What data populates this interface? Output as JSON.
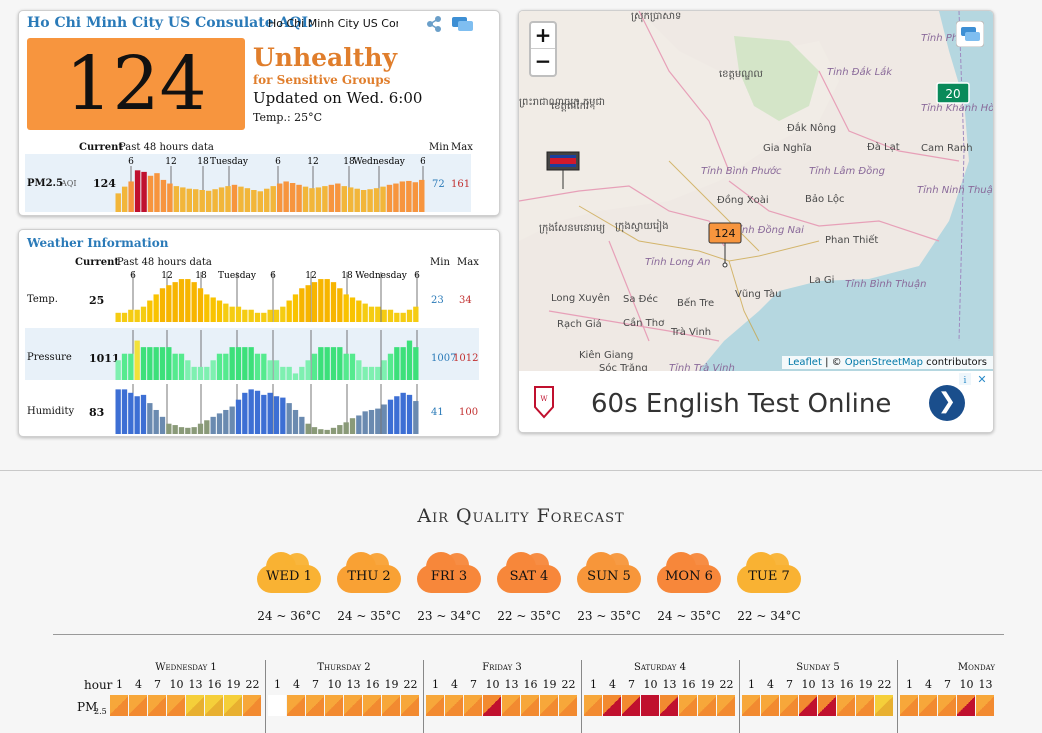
{
  "aqi_panel": {
    "title": "Ho Chi Minh City US Consulate AQI:",
    "title_value": "Ho Chi Minh City US Cons",
    "aqi_value": "124",
    "status": "Unhealthy",
    "status_sub": "for Sensitive Groups",
    "updated": "Updated on Wed. 6:00",
    "temp": "Temp.: 25°C",
    "col_current": "Current",
    "col_past": "Past 48 hours data",
    "col_min": "Min",
    "col_max": "Max",
    "axis_labels": [
      "6",
      "12",
      "18",
      "Tuesday",
      "6",
      "12",
      "18",
      "Wednesday",
      "6"
    ],
    "pm25_label": "PM2.5",
    "pm25_sub": "AQI",
    "pm25_current": "124",
    "pm25_min": "72",
    "pm25_max": "161",
    "pm25_series": [
      72,
      98,
      118,
      161,
      155,
      140,
      150,
      124,
      110,
      100,
      95,
      90,
      88,
      85,
      82,
      88,
      95,
      100,
      105,
      98,
      92,
      85,
      80,
      90,
      100,
      110,
      118,
      112,
      105,
      98,
      92,
      95,
      100,
      105,
      110,
      100,
      95,
      90,
      85,
      88,
      92,
      98,
      105,
      110,
      118,
      120,
      115,
      124
    ],
    "colors": {
      "good": "#59b443",
      "moderate": "#f2c200",
      "sensitive": "#f7953e",
      "unhealthy": "#c0102e"
    }
  },
  "weather_panel": {
    "title": "Weather Information",
    "col_current": "Current",
    "col_past": "Past 48 hours data",
    "col_min": "Min",
    "col_max": "Max",
    "axis_labels": [
      "6",
      "12",
      "18",
      "Tuesday",
      "6",
      "12",
      "18",
      "Wednesday",
      "6"
    ],
    "rows": [
      {
        "label": "Temp.",
        "current": "25",
        "min": "23",
        "max": "34",
        "series": [
          23,
          23,
          24,
          24,
          25,
          27,
          29,
          31,
          32,
          33,
          34,
          34,
          33,
          31,
          29,
          28,
          27,
          26,
          25,
          25,
          24,
          24,
          23,
          23,
          24,
          24,
          25,
          27,
          29,
          31,
          32,
          33,
          34,
          34,
          33,
          31,
          29,
          28,
          27,
          26,
          25,
          25,
          24,
          24,
          23,
          23,
          24,
          25
        ]
      },
      {
        "label": "Pressure",
        "current": "1011",
        "min": "1007",
        "max": "1012",
        "series": [
          1009,
          1010,
          1010,
          1012,
          1011,
          1011,
          1011,
          1011,
          1011,
          1010,
          1010,
          1009,
          1008,
          1008,
          1008,
          1009,
          1010,
          1010,
          1011,
          1011,
          1011,
          1011,
          1010,
          1010,
          1009,
          1009,
          1008,
          1008,
          1007,
          1008,
          1009,
          1010,
          1011,
          1011,
          1011,
          1011,
          1010,
          1010,
          1009,
          1008,
          1008,
          1008,
          1009,
          1010,
          1011,
          1011,
          1012,
          1011
        ]
      },
      {
        "label": "Humidity",
        "current": "83",
        "min": "41",
        "max": "100",
        "series": [
          100,
          100,
          95,
          90,
          92,
          80,
          70,
          60,
          50,
          48,
          45,
          44,
          45,
          50,
          55,
          60,
          65,
          70,
          75,
          85,
          95,
          100,
          98,
          92,
          95,
          90,
          88,
          80,
          70,
          60,
          50,
          45,
          42,
          41,
          44,
          48,
          52,
          58,
          62,
          68,
          70,
          72,
          78,
          85,
          90,
          95,
          92,
          83
        ]
      }
    ]
  },
  "map": {
    "zoom_in": "+",
    "zoom_out": "−",
    "labels": [
      "Tinh Đắk Lắk",
      "Đắk Nông",
      "Gia Nghĩa",
      "Đà Lạt",
      "Cam Ranh",
      "Tỉnh Bình Phước",
      "Tỉnh Lâm Đồng",
      "Đồng Xoài",
      "Bảo Lộc",
      "Tỉnh Đồng Nai",
      "Phan Thiết",
      "La Gi",
      "Tỉnh Bình Thuận",
      "Tỉnh Long An",
      "Long Xuyên",
      "Sa Đéc",
      "Bến Tre",
      "Vũng Tàu",
      "Rạch Giá",
      "Cần Thơ",
      "Trà Vinh",
      "Kiên Giang",
      "Sóc Trăng",
      "Tỉnh Trà Vinh",
      "Tỉnh Khánh Hòa",
      "Tỉnh Ninh Thuận",
      "Tỉnh Phú",
      "ស្រុកប្រាសាទ",
      "ខេត្តមណ្ឌល",
      "ព្រះរាជាណាចក្រ កម្ពុជា",
      "ខេត្តតាកែវ",
      "ក្រុងស្វាយរៀង",
      "ក្រុងសែនមនោរម្យ"
    ],
    "marker_main": "124",
    "marker_other": "20",
    "attrib_leaflet": "Leaflet",
    "attrib_sep": " | © ",
    "attrib_osm": "OpenStreetMap",
    "attrib_rest": " contributors",
    "ad_text": "60s English Test Online",
    "ad_go": "❯"
  },
  "forecast": {
    "title": "Air Quality Forecast",
    "days": [
      {
        "label": "WED 1",
        "temp": "24 ~ 36°C",
        "color": "#f9b233"
      },
      {
        "label": "THU 2",
        "temp": "24 ~ 35°C",
        "color": "#f9a134"
      },
      {
        "label": "FRI 3",
        "temp": "23 ~ 34°C",
        "color": "#f7873a"
      },
      {
        "label": "SAT 4",
        "temp": "22 ~ 35°C",
        "color": "#f7873a"
      },
      {
        "label": "SUN 5",
        "temp": "23 ~ 35°C",
        "color": "#f7963a"
      },
      {
        "label": "MON 6",
        "temp": "24 ~ 35°C",
        "color": "#f7873a"
      },
      {
        "label": "TUE 7",
        "temp": "22 ~ 34°C",
        "color": "#f9b233"
      }
    ],
    "hour_label": "hour",
    "pm_label": "PM",
    "pm_sub": "2.5",
    "hours": [
      "1",
      "4",
      "7",
      "10",
      "13",
      "16",
      "19",
      "22"
    ],
    "day_names": [
      "Wednesday 1",
      "Thursday 2",
      "Friday 3",
      "Saturday 4",
      "Sunday 5",
      "Monday"
    ],
    "day_hour_counts": [
      8,
      8,
      8,
      8,
      8,
      5
    ],
    "cells": [
      [
        "s",
        "s",
        "s",
        "s",
        "m",
        "m",
        "m",
        "s"
      ],
      [
        "",
        "s",
        "s",
        "s",
        "s",
        "s",
        "s",
        "s"
      ],
      [
        "s",
        "s",
        "s",
        "u",
        "s",
        "s",
        "s",
        "s"
      ],
      [
        "s",
        "u",
        "u",
        "U",
        "u",
        "s",
        "s",
        "s"
      ],
      [
        "s",
        "s",
        "s",
        "u",
        "u",
        "s",
        "s",
        "m"
      ],
      [
        "s",
        "s",
        "s",
        "u",
        "s"
      ]
    ]
  }
}
